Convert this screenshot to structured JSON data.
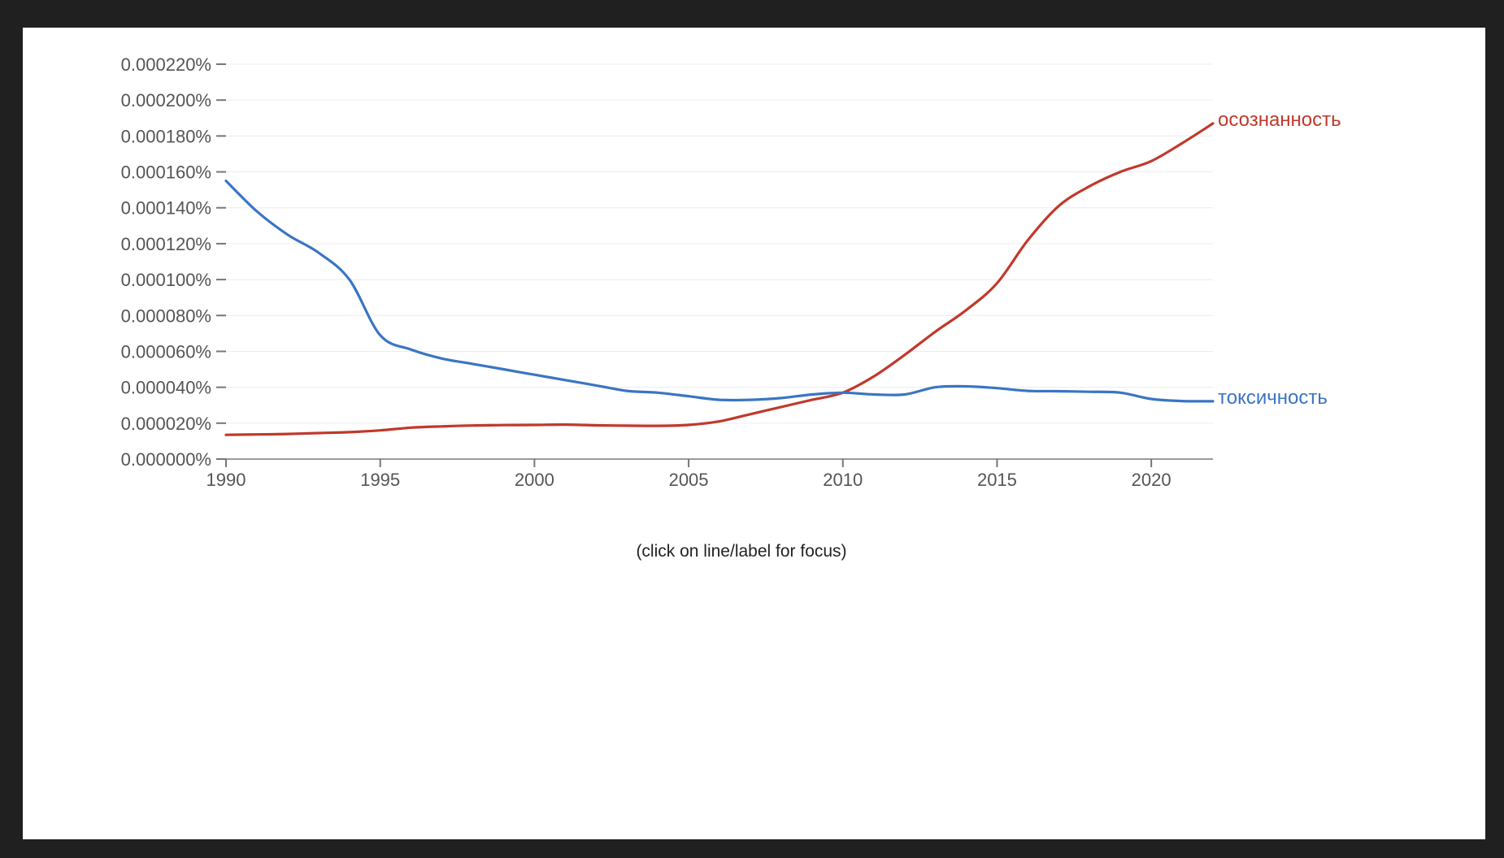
{
  "hint": "(click on line/label for focus)",
  "chart_data": {
    "type": "line",
    "title": "",
    "xlabel": "",
    "ylabel": "",
    "xlim": [
      1990,
      2022
    ],
    "ylim": [
      0,
      0.00022
    ],
    "x_ticks": [
      1990,
      1995,
      2000,
      2005,
      2010,
      2015,
      2020
    ],
    "y_ticks": [
      0,
      2e-05,
      4e-05,
      6e-05,
      8e-05,
      0.0001,
      0.00012,
      0.00014,
      0.00016,
      0.00018,
      0.0002,
      0.00022
    ],
    "y_tick_labels": [
      "0.000000%",
      "0.000020%",
      "0.000040%",
      "0.000060%",
      "0.000080%",
      "0.000100%",
      "0.000120%",
      "0.000140%",
      "0.000160%",
      "0.000180%",
      "0.000200%",
      "0.000220%"
    ],
    "grid": true,
    "series": [
      {
        "name": "осознанность",
        "color": "#c0392b",
        "x": [
          1990,
          1991,
          1992,
          1993,
          1994,
          1995,
          1996,
          1997,
          1998,
          1999,
          2000,
          2001,
          2002,
          2003,
          2004,
          2005,
          2006,
          2007,
          2008,
          2009,
          2010,
          2011,
          2012,
          2013,
          2014,
          2015,
          2016,
          2017,
          2018,
          2019,
          2020,
          2021,
          2022
        ],
        "values": [
          1.35e-05,
          1.37e-05,
          1.4e-05,
          1.45e-05,
          1.5e-05,
          1.6e-05,
          1.75e-05,
          1.82e-05,
          1.87e-05,
          1.89e-05,
          1.9e-05,
          1.92e-05,
          1.88e-05,
          1.86e-05,
          1.85e-05,
          1.9e-05,
          2.1e-05,
          2.5e-05,
          2.9e-05,
          3.3e-05,
          3.7e-05,
          4.6e-05,
          5.8e-05,
          7.1e-05,
          8.3e-05,
          9.8e-05,
          0.000122,
          0.000141,
          0.000152,
          0.00016,
          0.000166,
          0.000176,
          0.000187
        ]
      },
      {
        "name": "токсичность",
        "color": "#3a75c4",
        "x": [
          1990,
          1991,
          1992,
          1993,
          1994,
          1995,
          1996,
          1997,
          1998,
          1999,
          2000,
          2001,
          2002,
          2003,
          2004,
          2005,
          2006,
          2007,
          2008,
          2009,
          2010,
          2011,
          2012,
          2013,
          2014,
          2015,
          2016,
          2017,
          2018,
          2019,
          2020,
          2021,
          2022
        ],
        "values": [
          0.000155,
          0.000138,
          0.000125,
          0.000115,
          0.0001,
          6.9e-05,
          6.1e-05,
          5.6e-05,
          5.3e-05,
          5e-05,
          4.7e-05,
          4.4e-05,
          4.1e-05,
          3.8e-05,
          3.7e-05,
          3.5e-05,
          3.3e-05,
          3.3e-05,
          3.4e-05,
          3.6e-05,
          3.7e-05,
          3.6e-05,
          3.6e-05,
          4e-05,
          4.05e-05,
          3.95e-05,
          3.8e-05,
          3.78e-05,
          3.75e-05,
          3.7e-05,
          3.35e-05,
          3.23e-05,
          3.22e-05
        ]
      }
    ]
  }
}
